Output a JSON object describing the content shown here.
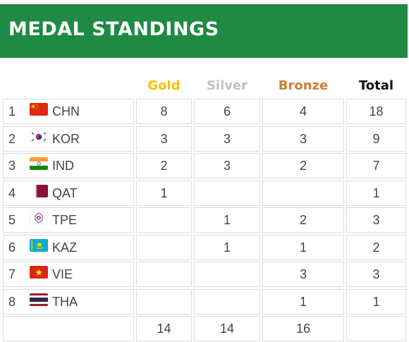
{
  "title": "MEDAL STANDINGS",
  "columns": {
    "gold": "Gold",
    "silver": "Silver",
    "bronze": "Bronze",
    "total": "Total"
  },
  "colors": {
    "banner": "#1f8a43",
    "gold": "#f5c400",
    "silver": "#c0c0c0",
    "bronze": "#cd7f32",
    "total": "#111111"
  },
  "rows": [
    {
      "rank": "1",
      "code": "CHN",
      "flag": "china-flag-icon",
      "gold": "8",
      "silver": "6",
      "bronze": "4",
      "total": "18"
    },
    {
      "rank": "2",
      "code": "KOR",
      "flag": "korea-flag-icon",
      "gold": "3",
      "silver": "3",
      "bronze": "3",
      "total": "9"
    },
    {
      "rank": "3",
      "code": "IND",
      "flag": "india-flag-icon",
      "gold": "2",
      "silver": "3",
      "bronze": "2",
      "total": "7"
    },
    {
      "rank": "4",
      "code": "QAT",
      "flag": "qatar-flag-icon",
      "gold": "1",
      "silver": "",
      "bronze": "",
      "total": "1"
    },
    {
      "rank": "5",
      "code": "TPE",
      "flag": "chinese-taipei-flag-icon",
      "gold": "",
      "silver": "1",
      "bronze": "2",
      "total": "3"
    },
    {
      "rank": "6",
      "code": "KAZ",
      "flag": "kazakhstan-flag-icon",
      "gold": "",
      "silver": "1",
      "bronze": "1",
      "total": "2"
    },
    {
      "rank": "7",
      "code": "VIE",
      "flag": "vietnam-flag-icon",
      "gold": "",
      "silver": "",
      "bronze": "3",
      "total": "3"
    },
    {
      "rank": "8",
      "code": "THA",
      "flag": "thailand-flag-icon",
      "gold": "",
      "silver": "",
      "bronze": "1",
      "total": "1"
    }
  ],
  "totals": {
    "gold": "14",
    "silver": "14",
    "bronze": "16",
    "total": ""
  }
}
